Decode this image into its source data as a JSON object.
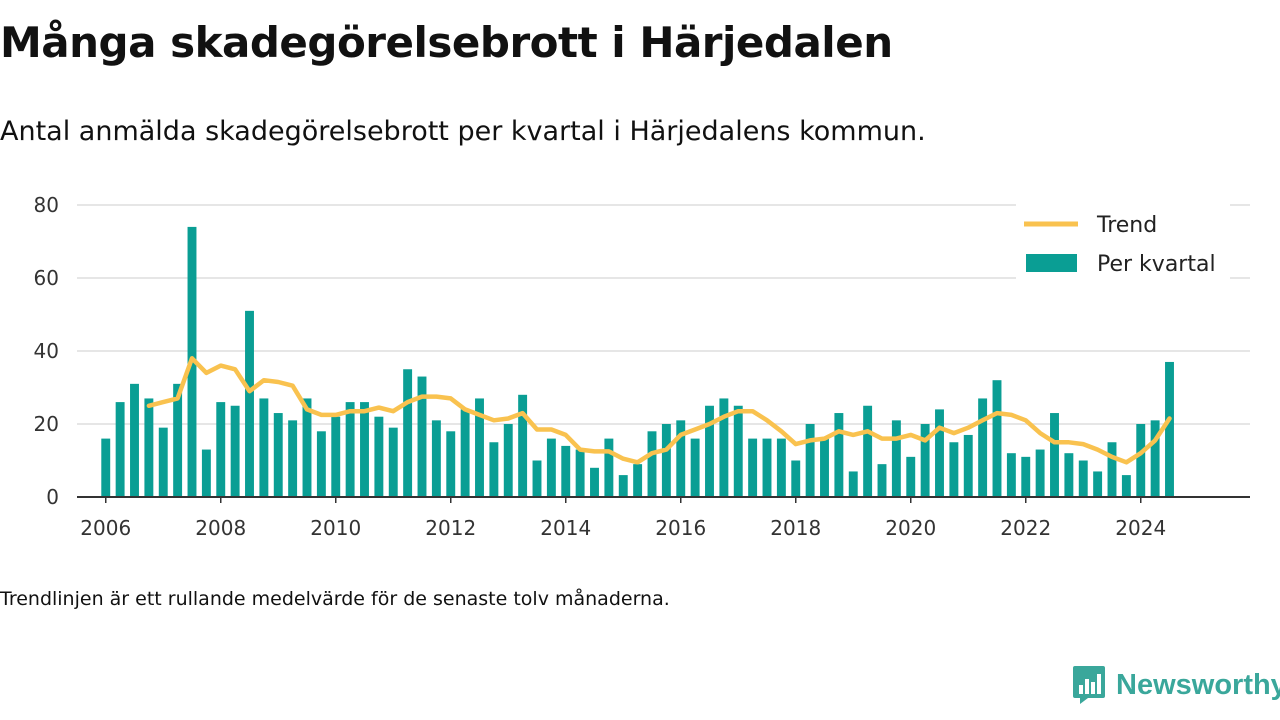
{
  "title": "Många skadegörelsebrott i Härjedalen",
  "subtitle": "Antal anmälda skadegörelsebrott per kvartal i Härjedalens kommun.",
  "footnote": "Trendlinjen är ett rullande medelvärde för de senaste tolv månaderna.",
  "brand": {
    "name": "Newsworthy",
    "color": "#3aa79b"
  },
  "chart_data": {
    "type": "bar",
    "title": "Många skadegörelsebrott i Härjedalen",
    "xlabel": "",
    "ylabel": "",
    "ylim": [
      0,
      80
    ],
    "xlim": [
      2005.5,
      2025.9
    ],
    "yticks": [
      0,
      20,
      40,
      60,
      80
    ],
    "xticks": [
      2006,
      2008,
      2010,
      2012,
      2014,
      2016,
      2018,
      2020,
      2022,
      2024
    ],
    "grid": true,
    "legend_position": "top-right",
    "series": [
      {
        "name": "Per kvartal",
        "type": "bar",
        "color": "#0a9e94",
        "x": [
          "2006 Q1",
          "2006 Q2",
          "2006 Q3",
          "2006 Q4",
          "2007 Q1",
          "2007 Q2",
          "2007 Q3",
          "2007 Q4",
          "2008 Q1",
          "2008 Q2",
          "2008 Q3",
          "2008 Q4",
          "2009 Q1",
          "2009 Q2",
          "2009 Q3",
          "2009 Q4",
          "2010 Q1",
          "2010 Q2",
          "2010 Q3",
          "2010 Q4",
          "2011 Q1",
          "2011 Q2",
          "2011 Q3",
          "2011 Q4",
          "2012 Q1",
          "2012 Q2",
          "2012 Q3",
          "2012 Q4",
          "2013 Q1",
          "2013 Q2",
          "2013 Q3",
          "2013 Q4",
          "2014 Q1",
          "2014 Q2",
          "2014 Q3",
          "2014 Q4",
          "2015 Q1",
          "2015 Q2",
          "2015 Q3",
          "2015 Q4",
          "2016 Q1",
          "2016 Q2",
          "2016 Q3",
          "2016 Q4",
          "2017 Q1",
          "2017 Q2",
          "2017 Q3",
          "2017 Q4",
          "2018 Q1",
          "2018 Q2",
          "2018 Q3",
          "2018 Q4",
          "2019 Q1",
          "2019 Q2",
          "2019 Q3",
          "2019 Q4",
          "2020 Q1",
          "2020 Q2",
          "2020 Q3",
          "2020 Q4",
          "2021 Q1",
          "2021 Q2",
          "2021 Q3",
          "2021 Q4",
          "2022 Q1",
          "2022 Q2",
          "2022 Q3",
          "2022 Q4",
          "2023 Q1",
          "2023 Q2",
          "2023 Q3",
          "2023 Q4",
          "2024 Q1",
          "2024 Q2",
          "2024 Q3"
        ],
        "values": [
          16,
          26,
          31,
          27,
          19,
          31,
          74,
          13,
          26,
          25,
          51,
          27,
          23,
          21,
          27,
          18,
          22,
          26,
          26,
          22,
          19,
          35,
          33,
          21,
          18,
          24,
          27,
          15,
          20,
          28,
          10,
          16,
          14,
          13,
          8,
          16,
          6,
          9,
          18,
          20,
          21,
          16,
          25,
          27,
          25,
          16,
          16,
          16,
          10,
          20,
          16,
          23,
          7,
          25,
          9,
          21,
          11,
          20,
          24,
          15,
          17,
          27,
          32,
          12,
          11,
          13,
          23,
          12,
          10,
          7,
          15,
          6,
          20,
          21,
          37
        ]
      },
      {
        "name": "Trend",
        "type": "line",
        "color": "#f9c24f",
        "x": [
          "2006 Q4",
          "2007 Q1",
          "2007 Q2",
          "2007 Q3",
          "2007 Q4",
          "2008 Q1",
          "2008 Q2",
          "2008 Q3",
          "2008 Q4",
          "2009 Q1",
          "2009 Q2",
          "2009 Q3",
          "2009 Q4",
          "2010 Q1",
          "2010 Q2",
          "2010 Q3",
          "2010 Q4",
          "2011 Q1",
          "2011 Q2",
          "2011 Q3",
          "2011 Q4",
          "2012 Q1",
          "2012 Q2",
          "2012 Q3",
          "2012 Q4",
          "2013 Q1",
          "2013 Q2",
          "2013 Q3",
          "2013 Q4",
          "2014 Q1",
          "2014 Q2",
          "2014 Q3",
          "2014 Q4",
          "2015 Q1",
          "2015 Q2",
          "2015 Q3",
          "2015 Q4",
          "2016 Q1",
          "2016 Q2",
          "2016 Q3",
          "2016 Q4",
          "2017 Q1",
          "2017 Q2",
          "2017 Q3",
          "2017 Q4",
          "2018 Q1",
          "2018 Q2",
          "2018 Q3",
          "2018 Q4",
          "2019 Q1",
          "2019 Q2",
          "2019 Q3",
          "2019 Q4",
          "2020 Q1",
          "2020 Q2",
          "2020 Q3",
          "2020 Q4",
          "2021 Q1",
          "2021 Q2",
          "2021 Q3",
          "2021 Q4",
          "2022 Q1",
          "2022 Q2",
          "2022 Q3",
          "2022 Q4",
          "2023 Q1",
          "2023 Q2",
          "2023 Q3",
          "2023 Q4",
          "2024 Q1",
          "2024 Q2",
          "2024 Q3"
        ],
        "values": [
          25,
          26,
          27,
          38,
          34,
          36,
          35,
          29,
          32,
          31.5,
          30.5,
          24,
          22.5,
          22.5,
          23.5,
          23.5,
          24.5,
          23.5,
          26,
          27.5,
          27.5,
          27,
          24,
          22.5,
          21,
          21.5,
          23,
          18.5,
          18.5,
          17,
          13,
          12.5,
          12.5,
          10.5,
          9.5,
          12,
          13,
          17,
          18.5,
          20,
          22,
          23.5,
          23.5,
          21,
          18,
          14.5,
          15.5,
          16,
          18,
          17,
          18,
          16,
          16,
          17,
          15.5,
          19,
          17.5,
          19,
          21,
          23,
          22.5,
          21,
          17.5,
          15,
          15,
          14.5,
          13,
          11,
          9.5,
          12,
          15.5,
          21.5
        ]
      }
    ]
  }
}
